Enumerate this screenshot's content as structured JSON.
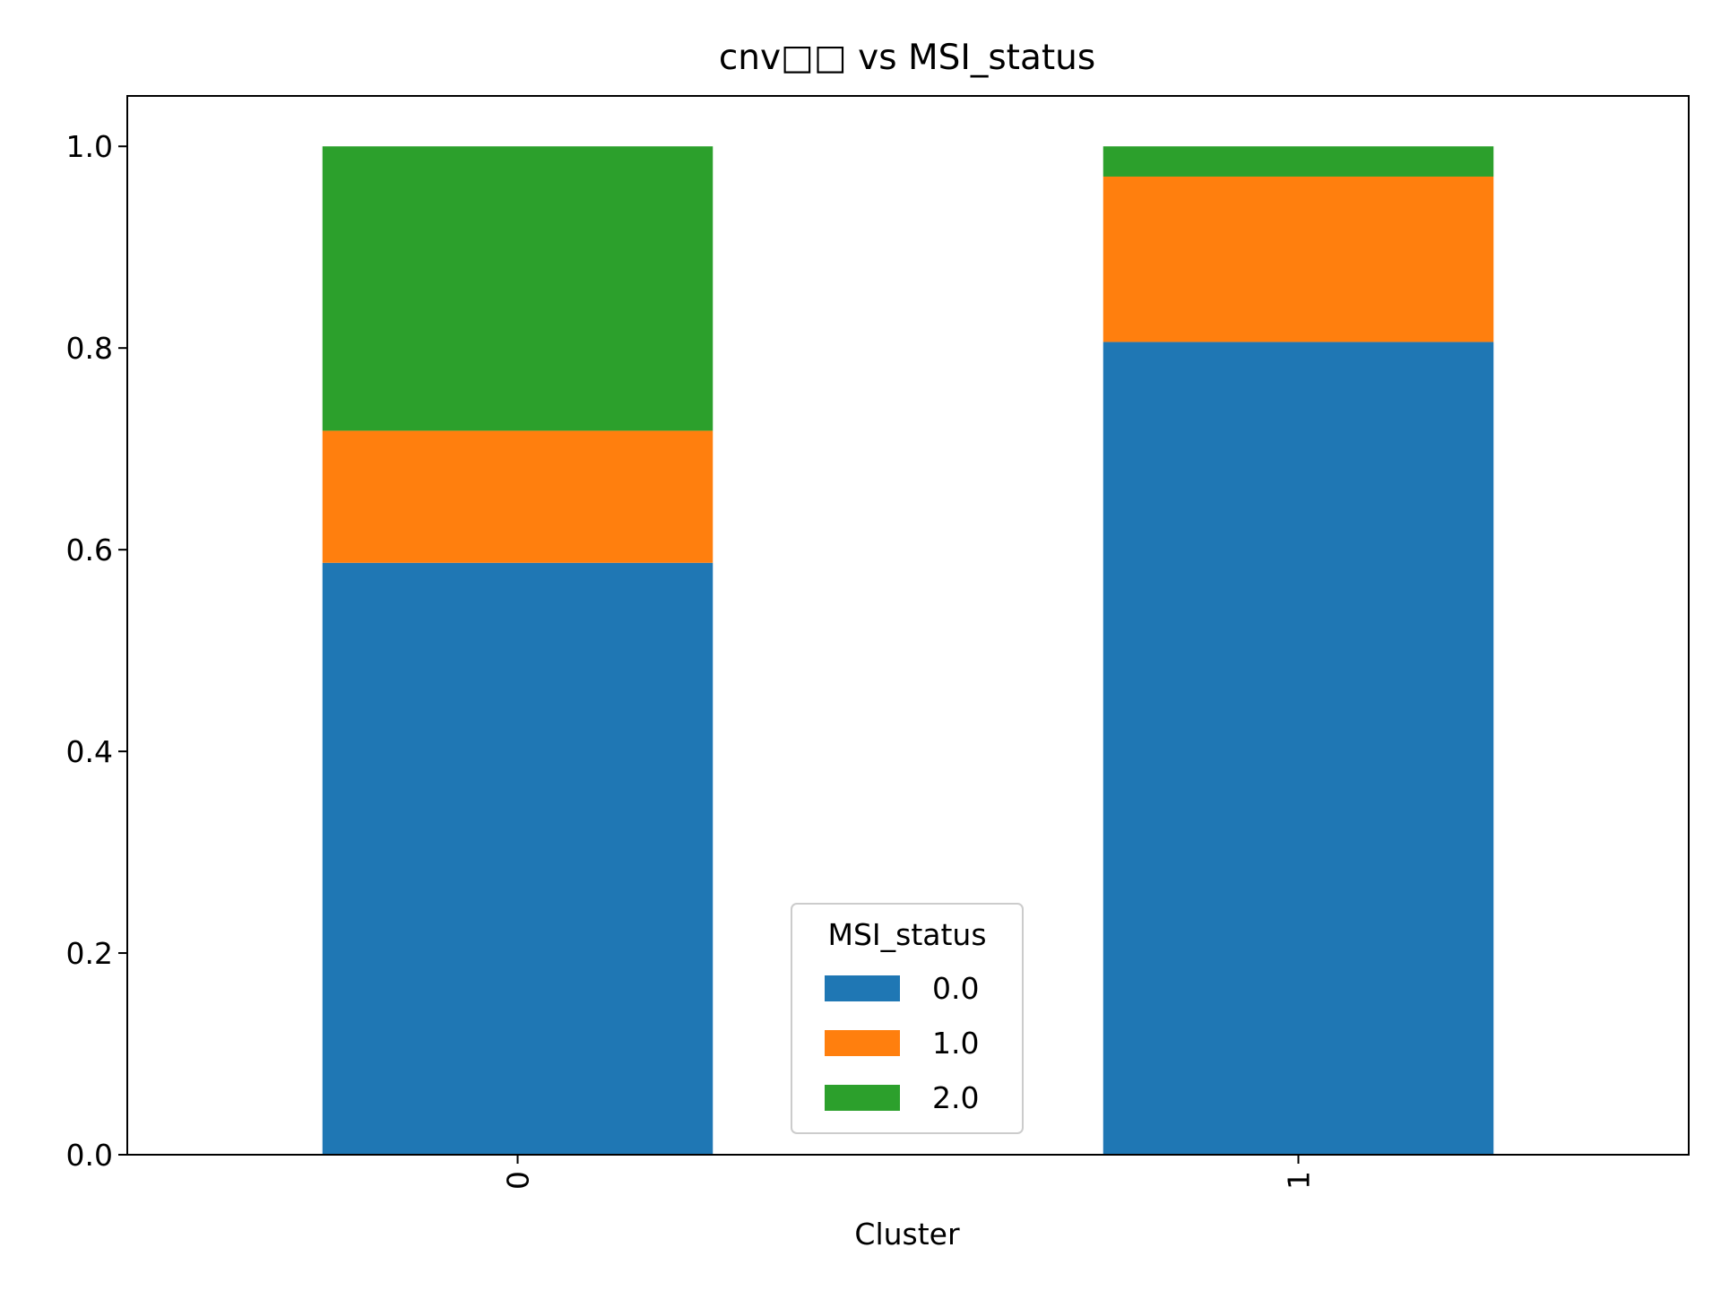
{
  "chart_data": {
    "type": "bar",
    "stacked": true,
    "title": "cnv□□ vs MSI_status",
    "xlabel": "Cluster",
    "ylabel": "",
    "categories": [
      "0",
      "1"
    ],
    "series": [
      {
        "name": "0.0",
        "color": "#1f77b4",
        "values": [
          0.587,
          0.806
        ]
      },
      {
        "name": "1.0",
        "color": "#ff7f0e",
        "values": [
          0.131,
          0.164
        ]
      },
      {
        "name": "2.0",
        "color": "#2ca02c",
        "values": [
          0.282,
          0.03
        ]
      }
    ],
    "ylim": [
      0,
      1.05
    ],
    "yticks": [
      "0.0",
      "0.2",
      "0.4",
      "0.6",
      "0.8",
      "1.0"
    ],
    "grid": false,
    "legend": {
      "title": "MSI_status",
      "placement": "lower center"
    }
  }
}
